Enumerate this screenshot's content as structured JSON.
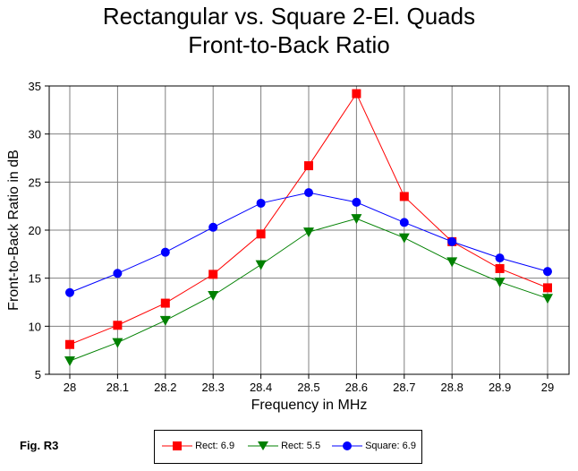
{
  "chart_data": {
    "type": "line",
    "title": "Rectangular vs. Square 2-El. Quads",
    "subtitle": "Front-to-Back Ratio",
    "xlabel": "Frequency in MHz",
    "ylabel": "Front-to-Back Ratio in dB",
    "x": [
      28,
      28.1,
      28.2,
      28.3,
      28.4,
      28.5,
      28.6,
      28.7,
      28.8,
      28.9,
      29
    ],
    "x_tick_labels": [
      "28",
      "28.1",
      "28.2",
      "28.3",
      "28.4",
      "28.5",
      "28.6",
      "28.7",
      "28.8",
      "28.9",
      "29"
    ],
    "ylim": [
      5,
      35
    ],
    "y_ticks": [
      5,
      10,
      15,
      20,
      25,
      30,
      35
    ],
    "grid": true,
    "legend_position": "bottom-center",
    "series": [
      {
        "name": "Rect: 6.9",
        "color": "#ff0000",
        "marker": "square",
        "values": [
          8.1,
          10.1,
          12.4,
          15.4,
          19.6,
          26.7,
          34.2,
          23.5,
          18.8,
          16.0,
          14.0
        ]
      },
      {
        "name": "Rect: 5.5",
        "color": "#008000",
        "marker": "triangle-down",
        "values": [
          6.4,
          8.3,
          10.6,
          13.2,
          16.4,
          19.8,
          21.2,
          19.2,
          16.7,
          14.6,
          12.9
        ]
      },
      {
        "name": "Square: 6.9",
        "color": "#0000ff",
        "marker": "circle",
        "values": [
          13.5,
          15.5,
          17.7,
          20.3,
          22.8,
          23.9,
          22.9,
          20.8,
          18.8,
          17.1,
          15.7
        ]
      }
    ]
  },
  "figure_label": "Fig. R3"
}
